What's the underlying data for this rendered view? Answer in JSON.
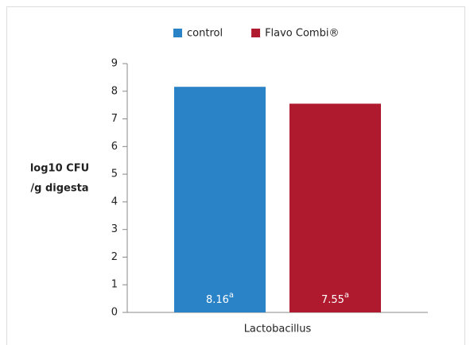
{
  "chart_data": {
    "type": "bar",
    "ylabel": [
      "log10 CFU",
      "/g digesta"
    ],
    "categories": [
      "Lactobacillus"
    ],
    "series": [
      {
        "name": "control",
        "color": "#2a83c7",
        "values": [
          8.16
        ],
        "value_notes": [
          "a"
        ]
      },
      {
        "name": "Flavo Combi®",
        "color": "#b01a2e",
        "values": [
          7.55
        ],
        "value_notes": [
          "a"
        ]
      }
    ],
    "ylim": [
      0,
      9
    ],
    "yticks": [
      0,
      1,
      2,
      3,
      4,
      5,
      6,
      7,
      8,
      9
    ],
    "legend": "top",
    "grid": false
  }
}
